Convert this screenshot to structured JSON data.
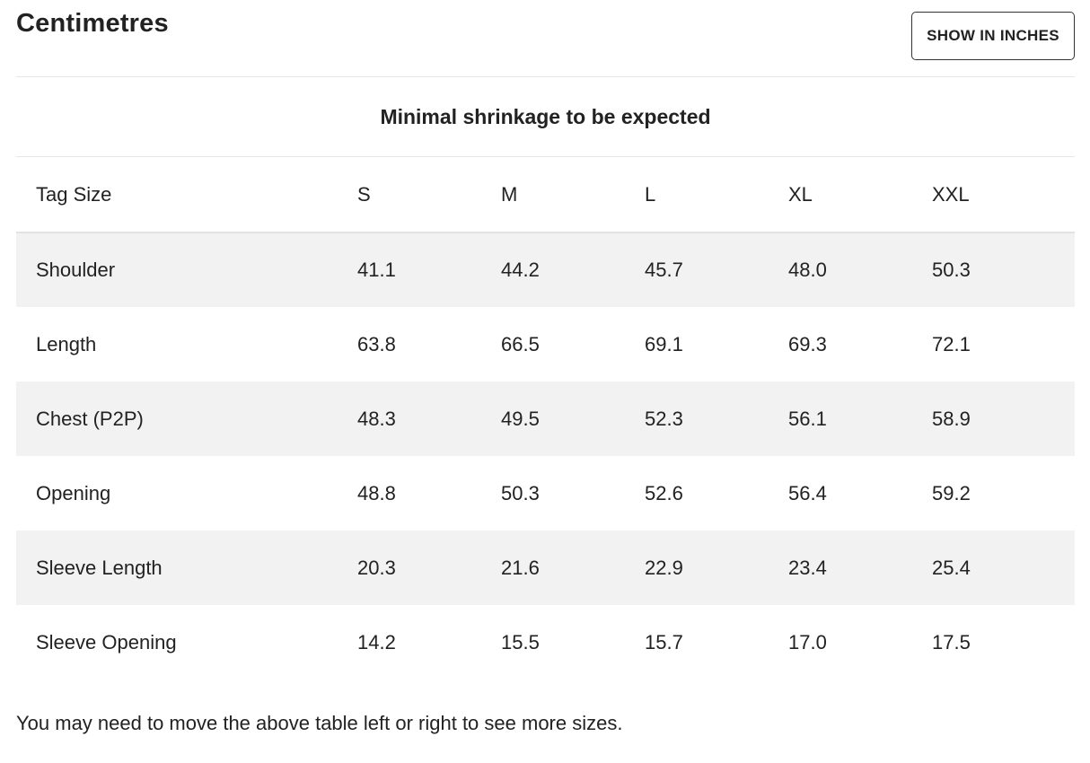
{
  "header": {
    "unit_title": "Centimetres",
    "toggle_label": "SHOW IN INCHES"
  },
  "table": {
    "caption": "Minimal shrinkage to be expected",
    "header_label": "Tag Size",
    "sizes": [
      "S",
      "M",
      "L",
      "XL",
      "XXL"
    ],
    "rows": [
      {
        "label": "Shoulder",
        "values": [
          "41.1",
          "44.2",
          "45.7",
          "48.0",
          "50.3"
        ]
      },
      {
        "label": "Length",
        "values": [
          "63.8",
          "66.5",
          "69.1",
          "69.3",
          "72.1"
        ]
      },
      {
        "label": "Chest (P2P)",
        "values": [
          "48.3",
          "49.5",
          "52.3",
          "56.1",
          "58.9"
        ]
      },
      {
        "label": "Opening",
        "values": [
          "48.8",
          "50.3",
          "52.6",
          "56.4",
          "59.2"
        ]
      },
      {
        "label": "Sleeve Length",
        "values": [
          "20.3",
          "21.6",
          "22.9",
          "23.4",
          "25.4"
        ]
      },
      {
        "label": "Sleeve Opening",
        "values": [
          "14.2",
          "15.5",
          "15.7",
          "17.0",
          "17.5"
        ]
      }
    ]
  },
  "footnote": "You may need to move the above table left or right to see more sizes.",
  "colors": {
    "text": "#222222",
    "stripe": "#f2f2f2",
    "border": "#e6e6e6"
  }
}
